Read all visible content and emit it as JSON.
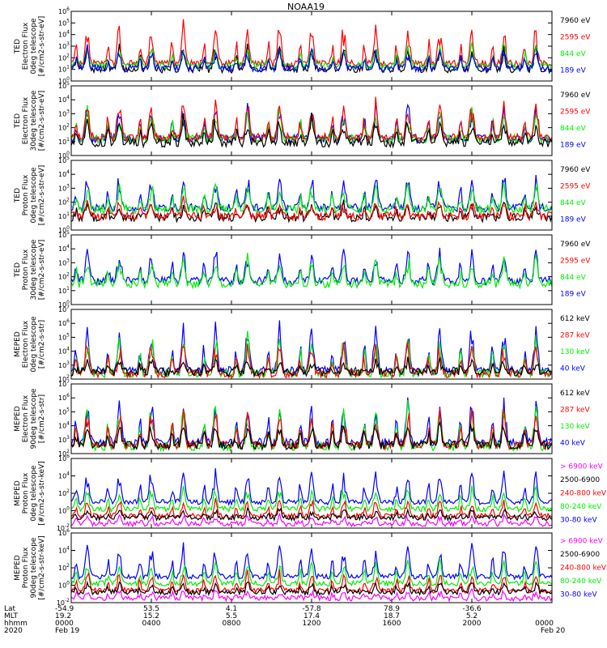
{
  "chart_data": {
    "type": "line",
    "title": "NOAA19",
    "x_label_rows": [
      "Lat",
      "MLT",
      "hhmm",
      "2020"
    ],
    "x_ticks": [
      {
        "lat": "-54.9",
        "mlt": "19.2",
        "hhmm": "0000",
        "date": "Feb 19"
      },
      {
        "lat": "53.5",
        "mlt": "15.2",
        "hhmm": "0400",
        "date": ""
      },
      {
        "lat": "4.1",
        "mlt": "5.5",
        "hhmm": "0800",
        "date": ""
      },
      {
        "lat": "-57.8",
        "mlt": "17.4",
        "hhmm": "1200",
        "date": ""
      },
      {
        "lat": "78.9",
        "mlt": "18.7",
        "hhmm": "1600",
        "date": ""
      },
      {
        "lat": "-36.6",
        "mlt": "5.2",
        "hhmm": "2000",
        "date": ""
      },
      {
        "lat": "",
        "mlt": "",
        "hhmm": "0000",
        "date": "Feb 20"
      }
    ],
    "x_range_hours": [
      0,
      24
    ],
    "panels": [
      {
        "ylabel": [
          "TED",
          "Electron Flux",
          "0deg telescope",
          "[#/cm2-s-str-eV]"
        ],
        "yrange_exp": [
          0,
          6
        ],
        "yticks": [
          0,
          1,
          2,
          3,
          4,
          5,
          6
        ],
        "legend": [
          {
            "label": "7960 eV",
            "color": "#000000"
          },
          {
            "label": "2595 eV",
            "color": "#ff0000"
          },
          {
            "label": "844 eV",
            "color": "#00ee00"
          },
          {
            "label": "189 eV",
            "color": "#0000ff"
          }
        ],
        "series": [
          {
            "name": "7960 eV",
            "color": "#000000",
            "base": 1.0,
            "amp": 2.2
          },
          {
            "name": "2595 eV",
            "color": "#ff0000",
            "base": 1.5,
            "amp": 3.6
          },
          {
            "name": "844 eV",
            "color": "#00ee00",
            "base": 1.3,
            "amp": 2.0
          },
          {
            "name": "189 eV",
            "color": "#0000ff",
            "base": 1.1,
            "amp": 1.8
          }
        ]
      },
      {
        "ylabel": [
          "TED",
          "Electron Flux",
          "30deg telescope",
          "[#/cm2-s-str-eV]"
        ],
        "yrange_exp": [
          0,
          5
        ],
        "yticks": [
          0,
          1,
          2,
          3,
          4,
          5
        ],
        "legend": [
          {
            "label": "7960 eV",
            "color": "#000000"
          },
          {
            "label": "2595 eV",
            "color": "#ff0000"
          },
          {
            "label": "844 eV",
            "color": "#00ee00"
          },
          {
            "label": "189 eV",
            "color": "#0000ff"
          }
        ],
        "series": [
          {
            "name": "189 eV",
            "color": "#0000ff",
            "base": 1.2,
            "amp": 2.6
          },
          {
            "name": "844 eV",
            "color": "#00ee00",
            "base": 1.2,
            "amp": 2.3
          },
          {
            "name": "2595 eV",
            "color": "#ff0000",
            "base": 1.3,
            "amp": 3.0
          },
          {
            "name": "7960 eV",
            "color": "#000000",
            "base": 0.9,
            "amp": 2.0
          }
        ]
      },
      {
        "ylabel": [
          "TED",
          "Proton Flux",
          "0deg telescope",
          "[#/cm2-s-str-eV]"
        ],
        "yrange_exp": [
          0,
          5
        ],
        "yticks": [
          0,
          1,
          2,
          3,
          4,
          5
        ],
        "legend": [
          {
            "label": "7960 eV",
            "color": "#000000"
          },
          {
            "label": "2595 eV",
            "color": "#ff0000"
          },
          {
            "label": "844 eV",
            "color": "#00ee00"
          },
          {
            "label": "189 eV",
            "color": "#0000ff"
          }
        ],
        "series": [
          {
            "name": "189 eV",
            "color": "#0000ff",
            "base": 1.6,
            "amp": 2.6
          },
          {
            "name": "7960 eV",
            "color": "#000000",
            "base": 0.9,
            "amp": 1.2
          },
          {
            "name": "2595 eV",
            "color": "#ff0000",
            "base": 1.0,
            "amp": 1.2
          },
          {
            "name": "844 eV",
            "color": "#00ee00",
            "base": 1.5,
            "amp": 2.2
          }
        ]
      },
      {
        "ylabel": [
          "TED",
          "Proton Flux",
          "30deg telescope",
          "[#/cm2-s-str-eV]"
        ],
        "yrange_exp": [
          0,
          5
        ],
        "yticks": [
          0,
          1,
          2,
          3,
          4,
          5
        ],
        "legend": [
          {
            "label": "7960 eV",
            "color": "#000000"
          },
          {
            "label": "2595 eV",
            "color": "#ff0000"
          },
          {
            "label": "844 eV",
            "color": "#00ee00"
          },
          {
            "label": "189 eV",
            "color": "#0000ff"
          }
        ],
        "series": [
          {
            "name": "189 eV",
            "color": "#0000ff",
            "base": 1.7,
            "amp": 2.5
          },
          {
            "name": "844 eV",
            "color": "#00ee00",
            "base": 1.5,
            "amp": 2.1
          }
        ]
      },
      {
        "ylabel": [
          "MEPED",
          "Electron Flux",
          "0deg telescope",
          "[#/cm2-s-str]"
        ],
        "yrange_exp": [
          2,
          7
        ],
        "yticks": [
          2,
          3,
          4,
          5,
          6,
          7
        ],
        "legend": [
          {
            "label": "612 keV",
            "color": "#000000"
          },
          {
            "label": "287 keV",
            "color": "#ff0000"
          },
          {
            "label": "130 keV",
            "color": "#00ee00"
          },
          {
            "label": "40 keV",
            "color": "#0000ff"
          }
        ],
        "series": [
          {
            "name": "40 keV",
            "color": "#0000ff",
            "base": 2.6,
            "amp": 3.6
          },
          {
            "name": "130 keV",
            "color": "#00ee00",
            "base": 2.4,
            "amp": 3.0
          },
          {
            "name": "287 keV",
            "color": "#ff0000",
            "base": 2.4,
            "amp": 2.5
          },
          {
            "name": "612 keV",
            "color": "#000000",
            "base": 2.5,
            "amp": 1.0
          }
        ]
      },
      {
        "ylabel": [
          "MEPED",
          "Electron Flux",
          "90deg telescope",
          "[#/cm2-s-str]"
        ],
        "yrange_exp": [
          2,
          7
        ],
        "yticks": [
          2,
          3,
          4,
          5,
          6,
          7
        ],
        "legend": [
          {
            "label": "612 keV",
            "color": "#000000"
          },
          {
            "label": "287 keV",
            "color": "#ff0000"
          },
          {
            "label": "130 keV",
            "color": "#00ee00"
          },
          {
            "label": "40 keV",
            "color": "#0000ff"
          }
        ],
        "series": [
          {
            "name": "40 keV",
            "color": "#0000ff",
            "base": 2.8,
            "amp": 3.4
          },
          {
            "name": "130 keV",
            "color": "#00ee00",
            "base": 2.5,
            "amp": 3.2
          },
          {
            "name": "287 keV",
            "color": "#ff0000",
            "base": 2.6,
            "amp": 2.8
          },
          {
            "name": "612 keV",
            "color": "#000000",
            "base": 2.6,
            "amp": 1.8
          }
        ]
      },
      {
        "ylabel": [
          "MEPED",
          "Proton Flux",
          "0deg telescope",
          "[#/cm2-s-str-keV]"
        ],
        "yrange_exp": [
          -2,
          6
        ],
        "yticks": [
          -2,
          0,
          2,
          4,
          6
        ],
        "legend": [
          {
            "label": "> 6900 keV",
            "color": "#ff00ff"
          },
          {
            "label": "2500-6900",
            "color": "#000000"
          },
          {
            "label": "240-800 keV",
            "color": "#ff0000"
          },
          {
            "label": "80-240 keV",
            "color": "#00ee00"
          },
          {
            "label": "30-80 keV",
            "color": "#0000ff"
          }
        ],
        "series": [
          {
            "name": "30-80 keV",
            "color": "#0000ff",
            "base": 1.0,
            "amp": 4.0
          },
          {
            "name": "80-240 keV",
            "color": "#00ee00",
            "base": 0.2,
            "amp": 2.8
          },
          {
            "name": "240-800 keV",
            "color": "#ff0000",
            "base": -0.6,
            "amp": 2.0
          },
          {
            "name": "2500-6900",
            "color": "#000000",
            "base": -0.8,
            "amp": 1.0
          },
          {
            "name": "> 6900 keV",
            "color": "#ff00ff",
            "base": -1.5,
            "amp": 1.0
          }
        ]
      },
      {
        "ylabel": [
          "MEPED",
          "Proton Flux",
          "90deg telescope",
          "[#/cm2-s-str-keV]"
        ],
        "yrange_exp": [
          -2,
          6
        ],
        "yticks": [
          -2,
          0,
          2,
          4,
          6
        ],
        "legend": [
          {
            "label": "> 6900 keV",
            "color": "#ff00ff"
          },
          {
            "label": "2500-6900",
            "color": "#000000"
          },
          {
            "label": "240-800 keV",
            "color": "#ff0000"
          },
          {
            "label": "80-240 keV",
            "color": "#00ee00"
          },
          {
            "label": "30-80 keV",
            "color": "#0000ff"
          }
        ],
        "series": [
          {
            "name": "30-80 keV",
            "color": "#0000ff",
            "base": 1.0,
            "amp": 4.0
          },
          {
            "name": "80-240 keV",
            "color": "#00ee00",
            "base": 0.2,
            "amp": 2.8
          },
          {
            "name": "240-800 keV",
            "color": "#ff0000",
            "base": -0.6,
            "amp": 2.2
          },
          {
            "name": "2500-6900",
            "color": "#000000",
            "base": -0.8,
            "amp": 1.2
          },
          {
            "name": "> 6900 keV",
            "color": "#ff00ff",
            "base": -1.5,
            "amp": 1.0
          }
        ]
      }
    ]
  }
}
